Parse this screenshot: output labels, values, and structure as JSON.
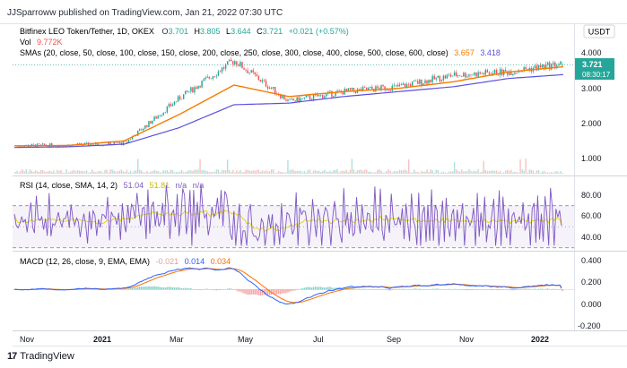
{
  "header": {
    "publisher_line": "JJSparroww published on TradingView.com, Jan 21, 2022 07:30 UTC",
    "symbol_title": "Bitfinex LEO Token/Tether, 1D, OKEX",
    "ohlc": {
      "O": "3.701",
      "H": "3.805",
      "L": "3.644",
      "C": "3.721",
      "change": "+0.021 (+0.57%)"
    },
    "vol_label": "Vol",
    "vol_value": "9.772K",
    "sma_label": "SMAs (20, close, 50, close, 100, close, 150, close, 200, close, 250, close, 300, close, 400, close, 500, close, 600, close)",
    "sma_values": [
      "3.657",
      "3.418"
    ]
  },
  "price_axis": {
    "currency": "USDT",
    "ticks": [
      "4.000",
      "3.000",
      "2.000",
      "1.000"
    ],
    "last_price": "3.721",
    "countdown": "08:30:17"
  },
  "rsi_panel": {
    "label": "RSI (14, close, SMA, 14, 2)",
    "values": [
      "51.04",
      "51.81",
      "n/a",
      "n/a"
    ],
    "ticks": [
      "80.00",
      "60.00",
      "40.00"
    ]
  },
  "macd_panel": {
    "label": "MACD (12, 26, close, 9, EMA, EMA)",
    "values": [
      "-0.021",
      "0.014",
      "0.034"
    ],
    "ticks": [
      "0.400",
      "0.200",
      "0.000",
      "-0.200"
    ]
  },
  "time_axis": {
    "labels": [
      "Nov",
      "2021",
      "Mar",
      "May",
      "Jul",
      "Sep",
      "Nov",
      "2022"
    ]
  },
  "footer": {
    "brand": "TradingView",
    "logo_mark": "17"
  },
  "colors": {
    "up": "#26a69a",
    "down": "#ef5350",
    "sma_fast": "#f57c00",
    "sma_slow": "#5b4fe0",
    "rsi_line": "#7e57c2",
    "rsi_sma": "#e5d400",
    "macd": "#2962ff",
    "signal": "#ff6d00"
  },
  "chart_data": [
    {
      "type": "candlestick",
      "title": "Bitfinex LEO Token/Tether, 1D, OKEX",
      "x_labels": [
        "Nov",
        "2021",
        "Mar",
        "May",
        "Jul",
        "Sep",
        "Nov",
        "2022"
      ],
      "approx_close_path": [
        1.25,
        1.27,
        1.33,
        2.7,
        3.85,
        2.6,
        2.9,
        3.05,
        3.4,
        3.5,
        3.75
      ],
      "ylim": [
        0.7,
        4.5
      ],
      "last": {
        "open": 3.701,
        "high": 3.805,
        "low": 3.644,
        "close": 3.721
      },
      "sma_fast_path": [
        1.25,
        1.26,
        1.4,
        2.2,
        3.1,
        2.75,
        2.9,
        3.0,
        3.2,
        3.5,
        3.657
      ],
      "sma_slow_path": [
        1.2,
        1.22,
        1.3,
        1.8,
        2.5,
        2.55,
        2.75,
        2.9,
        3.05,
        3.3,
        3.418
      ]
    },
    {
      "type": "line",
      "title": "RSI (14, close, SMA, 14, 2)",
      "ylim": [
        20,
        95
      ],
      "bands": [
        30,
        70
      ],
      "last": {
        "rsi": 51.04,
        "rsi_sma": 51.81
      }
    },
    {
      "type": "line",
      "title": "MACD (12, 26, close, 9, EMA, EMA)",
      "ylim": [
        -0.22,
        0.42
      ],
      "last": {
        "histogram": -0.021,
        "macd": 0.014,
        "signal": 0.034
      }
    }
  ]
}
